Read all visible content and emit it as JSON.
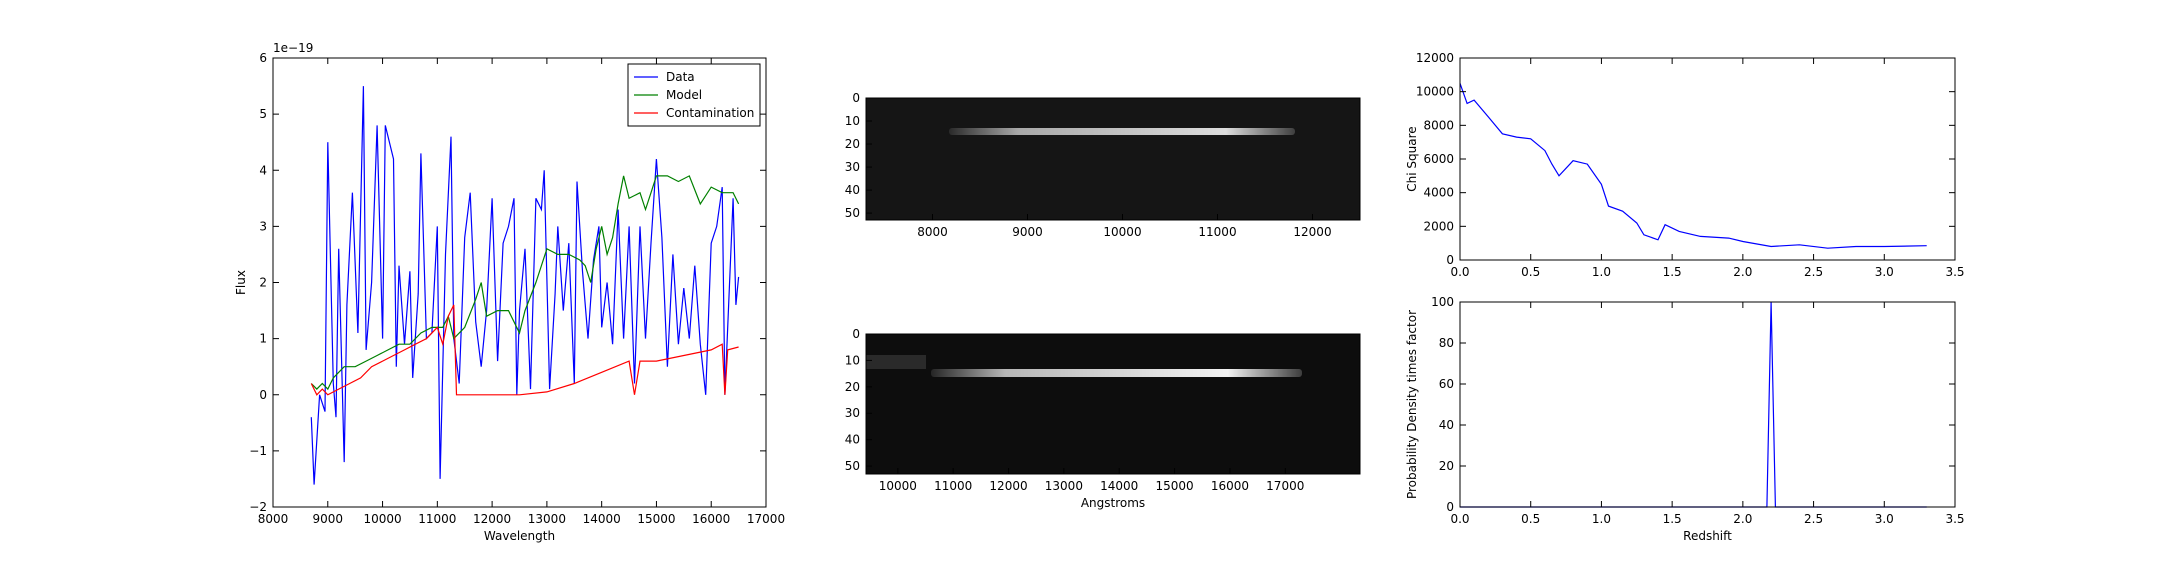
{
  "chart_data": [
    {
      "type": "line",
      "offset_text": "1e−19",
      "xlabel": "Wavelength",
      "ylabel": "Flux",
      "xlim": [
        8000,
        17000
      ],
      "ylim": [
        -2,
        6
      ],
      "xticks": [
        8000,
        9000,
        10000,
        11000,
        12000,
        13000,
        14000,
        15000,
        16000,
        17000
      ],
      "yticks": [
        {
          "value": -2,
          "label": "−2"
        },
        {
          "value": -1,
          "label": "−1"
        },
        0,
        1,
        2,
        3,
        4,
        5,
        6
      ],
      "legend": "upper right",
      "series": [
        {
          "name": "Data",
          "color": "#0000ff",
          "x": [
            8700,
            8750,
            8850,
            8950,
            9000,
            9100,
            9150,
            9200,
            9300,
            9350,
            9450,
            9550,
            9650,
            9700,
            9800,
            9900,
            10000,
            10050,
            10200,
            10250,
            10300,
            10400,
            10500,
            10550,
            10650,
            10700,
            10800,
            10900,
            11000,
            11050,
            11150,
            11250,
            11300,
            11400,
            11500,
            11600,
            11700,
            11800,
            11900,
            12000,
            12100,
            12200,
            12300,
            12400,
            12450,
            12500,
            12600,
            12700,
            12800,
            12900,
            12950,
            13050,
            13150,
            13200,
            13300,
            13400,
            13500,
            13550,
            13650,
            13750,
            13850,
            13950,
            14000,
            14100,
            14200,
            14300,
            14400,
            14500,
            14600,
            14700,
            14800,
            14900,
            15000,
            15100,
            15200,
            15300,
            15400,
            15500,
            15600,
            15700,
            15800,
            15900,
            16000,
            16100,
            16200,
            16250,
            16300,
            16400,
            16450,
            16500
          ],
          "values": [
            -0.4,
            -1.6,
            0.0,
            -0.3,
            4.5,
            0.2,
            -0.4,
            2.6,
            -1.2,
            1.6,
            3.6,
            1.1,
            5.5,
            0.8,
            2.0,
            4.8,
            1.0,
            4.8,
            4.2,
            0.5,
            2.3,
            0.9,
            2.2,
            0.3,
            1.8,
            4.3,
            1.0,
            1.1,
            3.0,
            -1.5,
            2.5,
            4.6,
            1.0,
            0.2,
            2.8,
            3.6,
            1.3,
            0.5,
            1.5,
            3.5,
            0.6,
            2.7,
            3.0,
            3.5,
            0.0,
            1.5,
            2.6,
            0.1,
            3.5,
            3.3,
            4.0,
            0.1,
            1.8,
            3.0,
            1.5,
            2.7,
            0.2,
            3.8,
            2.2,
            1.0,
            2.4,
            3.0,
            1.2,
            2.0,
            0.9,
            3.3,
            1.0,
            3.0,
            0.2,
            3.0,
            1.0,
            2.7,
            4.2,
            2.8,
            0.5,
            2.5,
            0.9,
            1.9,
            1.0,
            2.3,
            0.9,
            0.0,
            2.7,
            3.0,
            3.7,
            0.0,
            1.2,
            3.5,
            1.6,
            2.1
          ]
        },
        {
          "name": "Model",
          "color": "#008000",
          "x": [
            8700,
            8800,
            8900,
            9000,
            9100,
            9300,
            9500,
            9700,
            9900,
            10100,
            10300,
            10500,
            10700,
            10900,
            11100,
            11200,
            11300,
            11500,
            11700,
            11800,
            11900,
            12100,
            12300,
            12500,
            12600,
            12800,
            12900,
            13000,
            13200,
            13400,
            13600,
            13700,
            13800,
            13900,
            14000,
            14100,
            14200,
            14300,
            14400,
            14500,
            14700,
            14800,
            14900,
            15000,
            15200,
            15400,
            15600,
            15800,
            16000,
            16200,
            16400,
            16500
          ],
          "values": [
            0.2,
            0.1,
            0.2,
            0.1,
            0.3,
            0.5,
            0.5,
            0.6,
            0.7,
            0.8,
            0.9,
            0.9,
            1.1,
            1.2,
            1.2,
            1.4,
            1.0,
            1.2,
            1.7,
            2.0,
            1.4,
            1.5,
            1.5,
            1.1,
            1.5,
            2.0,
            2.3,
            2.6,
            2.5,
            2.5,
            2.4,
            2.3,
            2.0,
            2.6,
            3.0,
            2.5,
            2.8,
            3.4,
            3.9,
            3.5,
            3.6,
            3.3,
            3.6,
            3.9,
            3.9,
            3.8,
            3.9,
            3.4,
            3.7,
            3.6,
            3.6,
            3.4
          ]
        },
        {
          "name": "Contamination",
          "color": "#ff0000",
          "x": [
            8700,
            8800,
            8900,
            9000,
            9200,
            9400,
            9600,
            9800,
            10000,
            10200,
            10400,
            10600,
            10800,
            11000,
            11100,
            11200,
            11300,
            11350,
            11600,
            12000,
            12500,
            13000,
            13500,
            14000,
            14500,
            14600,
            14700,
            15000,
            15500,
            16000,
            16200,
            16250,
            16300,
            16500
          ],
          "values": [
            0.2,
            0.0,
            0.1,
            0.0,
            0.1,
            0.2,
            0.3,
            0.5,
            0.6,
            0.7,
            0.8,
            0.9,
            1.0,
            1.2,
            0.9,
            1.4,
            1.6,
            0.0,
            0.0,
            0.0,
            0.0,
            0.05,
            0.2,
            0.4,
            0.6,
            0.0,
            0.6,
            0.6,
            0.7,
            0.8,
            0.9,
            0.0,
            0.8,
            0.85
          ]
        }
      ]
    },
    {
      "type": "image",
      "xlim": [
        7300,
        12500
      ],
      "ylim": [
        0,
        53
      ],
      "invert_y": true,
      "xticks": [
        8000,
        9000,
        10000,
        11000,
        12000
      ],
      "yticks": [
        0,
        10,
        20,
        30,
        40,
        50
      ]
    },
    {
      "type": "image",
      "xlabel": "Angstroms",
      "xlim": [
        9425,
        18350
      ],
      "ylim": [
        0,
        53
      ],
      "invert_y": true,
      "xticks": [
        10000,
        11000,
        12000,
        13000,
        14000,
        15000,
        16000,
        17000
      ],
      "yticks": [
        0,
        10,
        20,
        30,
        40,
        50
      ]
    },
    {
      "type": "line",
      "ylabel": "Chi Square",
      "xlim": [
        0,
        3.5
      ],
      "ylim": [
        0,
        12000
      ],
      "xticks": [
        {
          "value": 0,
          "label": "0.0"
        },
        0.5,
        {
          "value": 1,
          "label": "1.0"
        },
        1.5,
        {
          "value": 2,
          "label": "2.0"
        },
        2.5,
        {
          "value": 3,
          "label": "3.0"
        },
        3.5
      ],
      "yticks": [
        0,
        2000,
        4000,
        6000,
        8000,
        10000,
        12000
      ],
      "series": [
        {
          "color": "#0000ff",
          "x": [
            0,
            0.05,
            0.1,
            0.2,
            0.3,
            0.4,
            0.5,
            0.6,
            0.65,
            0.7,
            0.8,
            0.9,
            1.0,
            1.05,
            1.15,
            1.25,
            1.3,
            1.4,
            1.45,
            1.55,
            1.7,
            1.9,
            2.0,
            2.2,
            2.4,
            2.6,
            2.8,
            3.0,
            3.3
          ],
          "values": [
            10500,
            9300,
            9500,
            8500,
            7500,
            7300,
            7200,
            6500,
            5700,
            5000,
            5900,
            5700,
            4500,
            3200,
            2900,
            2200,
            1500,
            1200,
            2100,
            1700,
            1400,
            1300,
            1100,
            800,
            900,
            700,
            800,
            800,
            850
          ]
        }
      ]
    },
    {
      "type": "line",
      "xlabel": "Redshift",
      "ylabel": "Probability Density times factor",
      "xlim": [
        0,
        3.5
      ],
      "ylim": [
        0,
        100
      ],
      "xticks": [
        {
          "value": 0,
          "label": "0.0"
        },
        0.5,
        {
          "value": 1,
          "label": "1.0"
        },
        1.5,
        {
          "value": 2,
          "label": "2.0"
        },
        2.5,
        {
          "value": 3,
          "label": "3.0"
        },
        3.5
      ],
      "yticks": [
        0,
        20,
        40,
        60,
        80,
        100
      ],
      "series": [
        {
          "color": "#0000ff",
          "x": [
            0,
            2.17,
            2.2,
            2.23,
            3.3
          ],
          "values": [
            0,
            0,
            100,
            0,
            0
          ]
        }
      ]
    }
  ]
}
